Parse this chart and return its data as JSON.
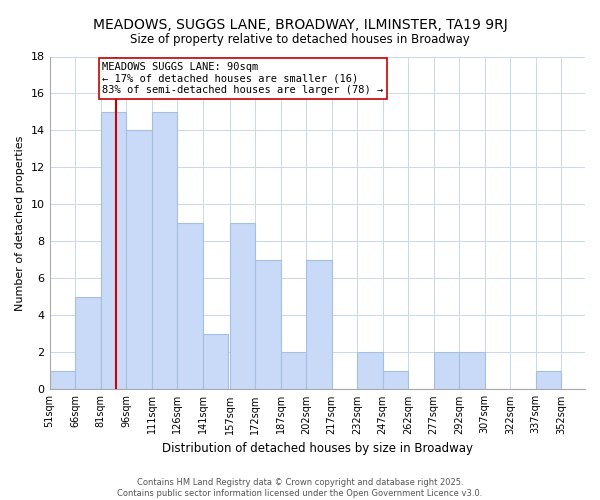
{
  "title": "MEADOWS, SUGGS LANE, BROADWAY, ILMINSTER, TA19 9RJ",
  "subtitle": "Size of property relative to detached houses in Broadway",
  "xlabel": "Distribution of detached houses by size in Broadway",
  "ylabel": "Number of detached properties",
  "bin_labels": [
    "51sqm",
    "66sqm",
    "81sqm",
    "96sqm",
    "111sqm",
    "126sqm",
    "141sqm",
    "157sqm",
    "172sqm",
    "187sqm",
    "202sqm",
    "217sqm",
    "232sqm",
    "247sqm",
    "262sqm",
    "277sqm",
    "292sqm",
    "307sqm",
    "322sqm",
    "337sqm",
    "352sqm"
  ],
  "bin_left": [
    51,
    66,
    81,
    96,
    111,
    126,
    141,
    157,
    172,
    187,
    202,
    217,
    232,
    247,
    262,
    277,
    292,
    307,
    322,
    337,
    352
  ],
  "bin_width": 15,
  "bar_heights": [
    1,
    5,
    15,
    14,
    15,
    9,
    3,
    9,
    7,
    2,
    7,
    0,
    2,
    1,
    0,
    2,
    2,
    0,
    0,
    1,
    0
  ],
  "bar_color": "#c9daf8",
  "bar_edgecolor": "#a4bfdf",
  "grid_color": "#c8d8ee",
  "background_color": "#ffffff",
  "ylim": [
    0,
    18
  ],
  "yticks": [
    0,
    2,
    4,
    6,
    8,
    10,
    12,
    14,
    16,
    18
  ],
  "property_size": 90,
  "vline_color": "#cc0000",
  "annotation_line1": "MEADOWS SUGGS LANE: 90sqm",
  "annotation_line2": "← 17% of detached houses are smaller (16)",
  "annotation_line3": "83% of semi-detached houses are larger (78) →",
  "footer_line1": "Contains HM Land Registry data © Crown copyright and database right 2025.",
  "footer_line2": "Contains public sector information licensed under the Open Government Licence v3.0."
}
